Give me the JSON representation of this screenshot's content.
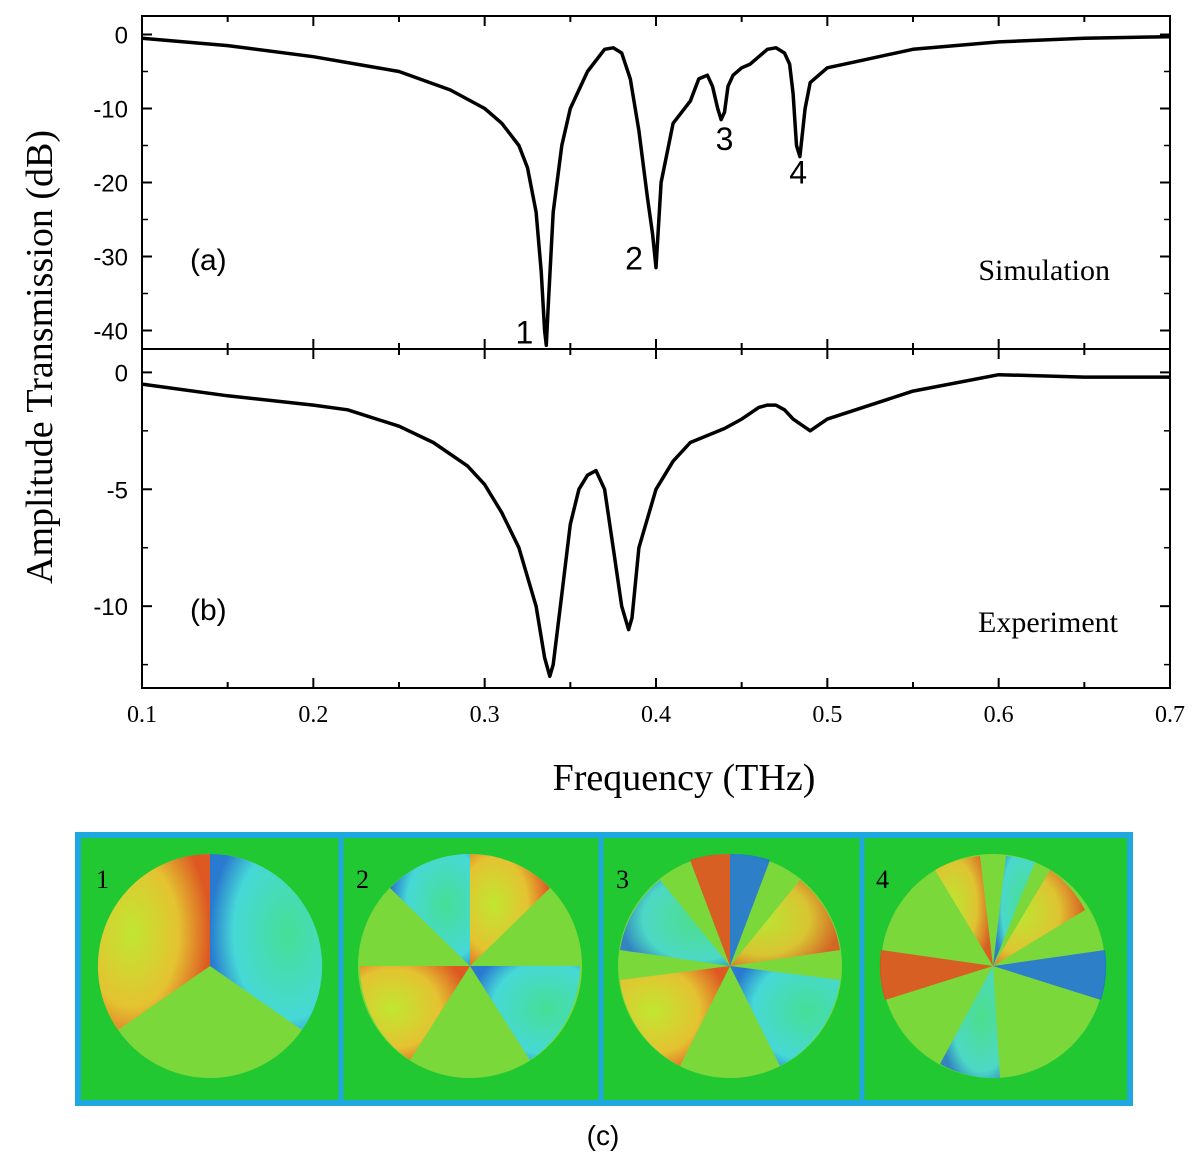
{
  "ylabel": "Amplitude Transmission (dB)",
  "xlabel": "Frequency (THz)",
  "x_ticks": [
    "0.1",
    "0.2",
    "0.3",
    "0.4",
    "0.5",
    "0.6",
    "0.7"
  ],
  "field_maps": {
    "caption": "(c)",
    "frame_color": "#1fa7e0",
    "panels": [
      {
        "label": "1"
      },
      {
        "label": "2"
      },
      {
        "label": "3"
      },
      {
        "label": "4"
      }
    ]
  },
  "chart_data": [
    {
      "type": "line",
      "panel_label": "(a)",
      "series_name": "Simulation",
      "xlim": [
        0.1,
        0.7
      ],
      "ylim": [
        -42.5,
        2.5
      ],
      "y_ticks": [
        "0",
        "-10",
        "-20",
        "-30",
        "-40"
      ],
      "y_tick_values": [
        0,
        -10,
        -20,
        -30,
        -40
      ],
      "x": [
        0.1,
        0.15,
        0.2,
        0.25,
        0.28,
        0.3,
        0.31,
        0.32,
        0.325,
        0.33,
        0.333,
        0.335,
        0.336,
        0.337,
        0.34,
        0.345,
        0.35,
        0.36,
        0.37,
        0.375,
        0.38,
        0.385,
        0.39,
        0.395,
        0.398,
        0.4,
        0.403,
        0.41,
        0.42,
        0.425,
        0.43,
        0.433,
        0.436,
        0.438,
        0.44,
        0.442,
        0.445,
        0.45,
        0.455,
        0.46,
        0.465,
        0.47,
        0.475,
        0.478,
        0.48,
        0.482,
        0.484,
        0.487,
        0.49,
        0.5,
        0.52,
        0.55,
        0.6,
        0.65,
        0.7
      ],
      "y": [
        -0.5,
        -1.5,
        -3,
        -5,
        -7.5,
        -10,
        -12,
        -15,
        -18,
        -24,
        -32,
        -40,
        -42,
        -37,
        -24,
        -15,
        -10,
        -5,
        -2,
        -1.8,
        -2.5,
        -6,
        -13,
        -22,
        -27,
        -31.5,
        -20,
        -12,
        -9,
        -6,
        -5.5,
        -7,
        -10,
        -11.5,
        -10.5,
        -7,
        -5.5,
        -4.5,
        -4,
        -3,
        -2,
        -1.8,
        -2.5,
        -4,
        -8,
        -15,
        -16.5,
        -10,
        -6.5,
        -4.5,
        -3.5,
        -2,
        -1,
        -0.5,
        -0.3
      ],
      "annotations": [
        {
          "text": "1",
          "x": 0.336
        },
        {
          "text": "2",
          "x": 0.4
        },
        {
          "text": "3",
          "x": 0.44
        },
        {
          "text": "4",
          "x": 0.483
        }
      ]
    },
    {
      "type": "line",
      "panel_label": "(b)",
      "series_name": "Experiment",
      "xlim": [
        0.1,
        0.7
      ],
      "ylim": [
        -13.5,
        1
      ],
      "y_ticks": [
        "0",
        "-5",
        "-10"
      ],
      "y_tick_values": [
        0,
        -5,
        -10
      ],
      "x": [
        0.1,
        0.15,
        0.2,
        0.22,
        0.25,
        0.27,
        0.29,
        0.3,
        0.31,
        0.32,
        0.33,
        0.335,
        0.338,
        0.34,
        0.345,
        0.35,
        0.355,
        0.36,
        0.365,
        0.37,
        0.375,
        0.38,
        0.384,
        0.386,
        0.39,
        0.4,
        0.41,
        0.42,
        0.43,
        0.44,
        0.45,
        0.46,
        0.465,
        0.47,
        0.475,
        0.48,
        0.49,
        0.5,
        0.55,
        0.6,
        0.65,
        0.7
      ],
      "y": [
        -0.5,
        -1,
        -1.4,
        -1.6,
        -2.3,
        -3,
        -4,
        -4.8,
        -6,
        -7.5,
        -10,
        -12.2,
        -13,
        -12.5,
        -9.5,
        -6.5,
        -5,
        -4.4,
        -4.2,
        -5,
        -7.5,
        -10,
        -11,
        -10.5,
        -7.5,
        -5,
        -3.8,
        -3,
        -2.7,
        -2.4,
        -2,
        -1.5,
        -1.4,
        -1.4,
        -1.6,
        -2,
        -2.5,
        -2,
        -0.8,
        -0.1,
        -0.2,
        -0.2
      ]
    }
  ]
}
